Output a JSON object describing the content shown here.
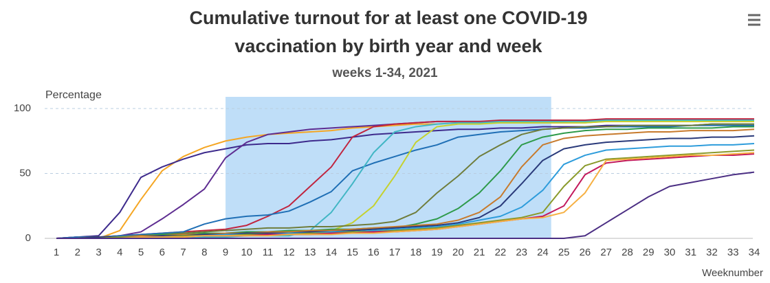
{
  "chart_data": {
    "type": "line",
    "title": "Cumulative turnout for at least one COVID-19 vaccination by birth year and week",
    "subtitle": "weeks 1-34, 2021",
    "y_axis_label": "Percentage",
    "x_axis_label": "Weeknumber",
    "x": [
      1,
      2,
      3,
      4,
      5,
      6,
      7,
      8,
      9,
      10,
      11,
      12,
      13,
      14,
      15,
      16,
      17,
      18,
      19,
      20,
      21,
      22,
      23,
      24,
      25,
      26,
      27,
      28,
      29,
      30,
      31,
      32,
      33,
      34
    ],
    "xlim": [
      1,
      34
    ],
    "xticks": [
      1,
      2,
      3,
      4,
      5,
      6,
      7,
      8,
      9,
      10,
      11,
      12,
      13,
      14,
      15,
      16,
      17,
      18,
      19,
      20,
      21,
      22,
      23,
      24,
      25,
      26,
      27,
      28,
      29,
      30,
      31,
      32,
      33,
      34
    ],
    "ylim": [
      0,
      100
    ],
    "yticks": [
      0,
      50,
      100
    ],
    "grid": true,
    "plot_band": {
      "from": 9,
      "to": 24.4,
      "color": "#bcdcf8"
    },
    "series": [
      {
        "color": "#f5a623",
        "values": [
          0,
          0,
          0,
          6,
          30,
          52,
          63,
          70,
          75,
          78,
          80,
          81,
          82,
          83,
          85,
          86,
          87,
          88,
          88,
          89,
          89,
          89,
          89,
          89,
          89,
          89,
          90,
          90,
          90,
          90,
          90,
          90,
          90,
          90
        ]
      },
      {
        "color": "#3d2a8c",
        "values": [
          0,
          1,
          2,
          20,
          47,
          55,
          61,
          66,
          69,
          72,
          73,
          73,
          75,
          76,
          78,
          80,
          81,
          82,
          83,
          84,
          84,
          85,
          85,
          86,
          86,
          86,
          87,
          87,
          87,
          87,
          87,
          88,
          88,
          88
        ]
      },
      {
        "color": "#5e2d91",
        "values": [
          0,
          1,
          1,
          2,
          5,
          15,
          26,
          38,
          62,
          74,
          80,
          82,
          84,
          85,
          86,
          87,
          88,
          89,
          90,
          90,
          90,
          90,
          90,
          90,
          90,
          91,
          91,
          91,
          91,
          91,
          91,
          91,
          91,
          91
        ]
      },
      {
        "color": "#c0253f",
        "values": [
          0,
          1,
          1,
          2,
          3,
          4,
          5,
          6,
          7,
          10,
          17,
          25,
          40,
          55,
          78,
          86,
          88,
          89,
          90,
          90,
          90,
          91,
          91,
          91,
          91,
          91,
          92,
          92,
          92,
          92,
          92,
          92,
          92,
          92
        ]
      },
      {
        "color": "#1f6fb5",
        "values": [
          0,
          1,
          1,
          2,
          3,
          4,
          5,
          11,
          15,
          17,
          18,
          21,
          28,
          36,
          52,
          58,
          63,
          68,
          72,
          78,
          80,
          82,
          83,
          84,
          85,
          85,
          86,
          86,
          86,
          86,
          87,
          87,
          87,
          87
        ]
      },
      {
        "color": "#41b6c4",
        "values": [
          0,
          0,
          1,
          1,
          1,
          1,
          1,
          1,
          1,
          2,
          2,
          2,
          6,
          20,
          42,
          66,
          82,
          86,
          88,
          89,
          89,
          90,
          90,
          90,
          90,
          90,
          91,
          91,
          91,
          91,
          91,
          91,
          91,
          91
        ]
      },
      {
        "color": "#c5d12e",
        "values": [
          0,
          0,
          1,
          1,
          2,
          2,
          3,
          3,
          3,
          4,
          4,
          5,
          5,
          6,
          12,
          25,
          48,
          74,
          86,
          88,
          88,
          89,
          89,
          89,
          89,
          89,
          90,
          90,
          90,
          90,
          90,
          90,
          90,
          90
        ]
      },
      {
        "color": "#6f7d3b",
        "values": [
          0,
          0,
          1,
          1,
          2,
          3,
          4,
          5,
          6,
          7,
          8,
          8,
          9,
          9,
          10,
          11,
          13,
          20,
          35,
          48,
          63,
          72,
          80,
          84,
          85,
          86,
          86,
          87,
          87,
          87,
          87,
          88,
          88,
          88
        ]
      },
      {
        "color": "#2e9a4a",
        "values": [
          0,
          0,
          1,
          1,
          2,
          3,
          3,
          4,
          4,
          5,
          5,
          6,
          6,
          7,
          7,
          8,
          8,
          11,
          15,
          23,
          35,
          52,
          72,
          78,
          81,
          83,
          84,
          84,
          85,
          85,
          85,
          85,
          86,
          86
        ]
      },
      {
        "color": "#c77a2c",
        "values": [
          0,
          0,
          1,
          1,
          2,
          2,
          3,
          3,
          4,
          4,
          5,
          5,
          6,
          6,
          7,
          8,
          9,
          10,
          11,
          14,
          20,
          32,
          55,
          72,
          77,
          79,
          80,
          81,
          82,
          82,
          83,
          83,
          83,
          84
        ]
      },
      {
        "color": "#2a3a7a",
        "values": [
          0,
          0,
          1,
          1,
          1,
          2,
          2,
          3,
          3,
          4,
          4,
          4,
          5,
          5,
          6,
          7,
          8,
          9,
          10,
          12,
          16,
          25,
          42,
          60,
          69,
          72,
          74,
          75,
          76,
          77,
          77,
          78,
          78,
          79
        ]
      },
      {
        "color": "#2d9cdb",
        "values": [
          0,
          0,
          0,
          1,
          1,
          1,
          2,
          2,
          3,
          3,
          3,
          4,
          4,
          5,
          5,
          6,
          7,
          8,
          9,
          11,
          14,
          17,
          24,
          37,
          57,
          64,
          68,
          69,
          70,
          71,
          71,
          72,
          72,
          73
        ]
      },
      {
        "color": "#8a9a2a",
        "values": [
          0,
          0,
          0,
          1,
          1,
          1,
          2,
          2,
          2,
          3,
          3,
          3,
          4,
          4,
          5,
          5,
          6,
          7,
          8,
          10,
          12,
          14,
          16,
          20,
          40,
          56,
          61,
          62,
          63,
          64,
          65,
          66,
          67,
          68
        ]
      },
      {
        "color": "#c2185b",
        "values": [
          0,
          0,
          0,
          0,
          1,
          1,
          1,
          2,
          2,
          2,
          3,
          3,
          3,
          4,
          4,
          5,
          5,
          6,
          7,
          9,
          11,
          13,
          15,
          17,
          25,
          49,
          58,
          60,
          61,
          62,
          63,
          64,
          64,
          65
        ]
      },
      {
        "color": "#f6b042",
        "values": [
          0,
          0,
          0,
          0,
          1,
          1,
          1,
          2,
          2,
          2,
          2,
          3,
          3,
          3,
          4,
          4,
          5,
          6,
          7,
          9,
          11,
          13,
          15,
          16,
          20,
          35,
          60,
          61,
          62,
          63,
          64,
          64,
          65,
          66
        ]
      },
      {
        "color": "#4b2e83",
        "values": [
          0,
          0,
          0,
          0,
          0,
          0,
          0,
          0,
          0,
          0,
          0,
          0,
          0,
          0,
          0,
          0,
          0,
          0,
          0,
          0,
          0,
          0,
          0,
          0,
          0,
          2,
          12,
          22,
          32,
          40,
          43,
          46,
          49,
          51
        ]
      }
    ]
  }
}
